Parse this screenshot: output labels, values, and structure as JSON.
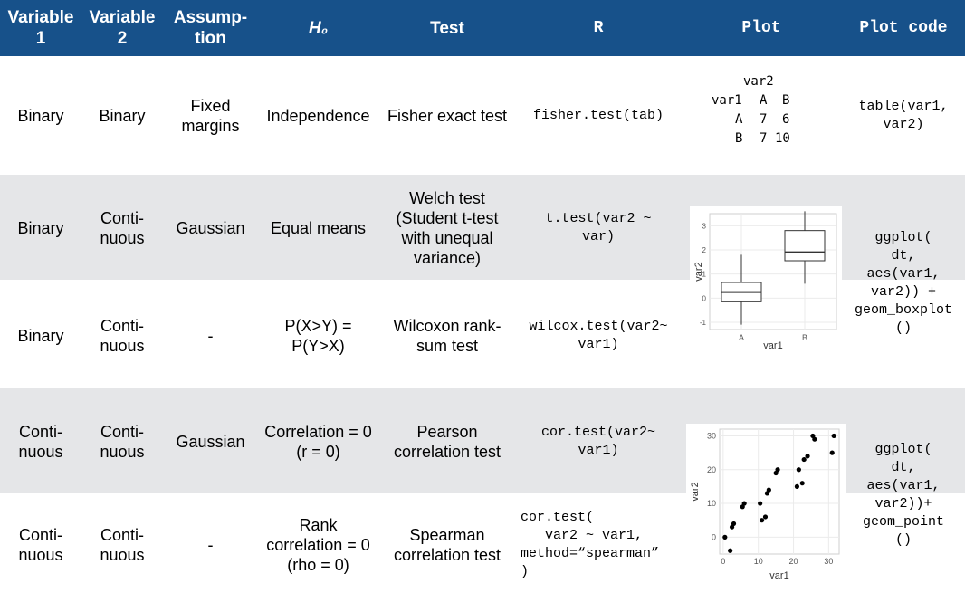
{
  "headers": {
    "var1": "Variable 1",
    "var2": "Variable 2",
    "assumption": "Assump-\ntion",
    "h0": "H₀",
    "test": "Test",
    "r": "R",
    "plot": "Plot",
    "plot_code": "Plot code"
  },
  "rows": [
    {
      "var1": "Binary",
      "var2": "Binary",
      "assumption": "Fixed\nmargins",
      "h0": "Independence",
      "test": "Fisher exact test",
      "r": "fisher.test(tab)"
    },
    {
      "var1": "Binary",
      "var2": "Conti-\nnuous",
      "assumption": "Gaussian",
      "h0": "Equal means",
      "test": "Welch test\n(Student t-test\nwith unequal\nvariance)",
      "r": "t.test(var2 ~\nvar)"
    },
    {
      "var1": "Binary",
      "var2": "Conti-\nnuous",
      "assumption": "-",
      "h0": "P(X>Y) =\nP(Y>X)",
      "test": "Wilcoxon rank-\nsum test",
      "r": "wilcox.test(var2~\nvar1)"
    },
    {
      "var1": "Conti-\nnuous",
      "var2": "Conti-\nnuous",
      "assumption": "Gaussian",
      "h0": "Correlation = 0\n(r = 0)",
      "test": "Pearson\ncorrelation test",
      "r": "cor.test(var2~\nvar1)"
    },
    {
      "var1": "Conti-\nnuous",
      "var2": "Conti-\nnuous",
      "assumption": "-",
      "h0": "Rank\ncorrelation = 0\n(rho = 0)",
      "test": "Spearman\ncorrelation test",
      "r": "cor.test(\n   var2 ~ var1,\nmethod=“spearman”\n)"
    }
  ],
  "plot_code": {
    "table": "table(var1,\nvar2)",
    "boxplot": "ggplot(\ndt,\naes(var1,\nvar2)) +\ngeom_boxplot\n()",
    "point": "ggplot(\ndt,\naes(var1,\nvar2))+\ngeom_point\n()"
  },
  "contingency": {
    "col_var": "var2",
    "row_var": "var1",
    "col_labels": [
      "A",
      "B"
    ],
    "row_labels": [
      "A",
      "B"
    ],
    "counts": [
      [
        "7",
        "6"
      ],
      [
        "7",
        "10"
      ]
    ]
  },
  "chart_data": [
    {
      "type": "box",
      "xlabel": "var1",
      "ylabel": "var2",
      "categories": [
        "A",
        "B"
      ],
      "yticks": [
        -1,
        0,
        1,
        2,
        3
      ],
      "ylim": [
        -1.3,
        3.5
      ],
      "grid": true,
      "boxes": [
        {
          "category": "A",
          "min": -1.1,
          "q1": -0.15,
          "median": 0.25,
          "q3": 0.65,
          "max": 1.8
        },
        {
          "category": "B",
          "min": 0.6,
          "q1": 1.55,
          "median": 1.9,
          "q3": 2.8,
          "max": 3.6
        }
      ]
    },
    {
      "type": "scatter",
      "xlabel": "var1",
      "ylabel": "var2",
      "xticks": [
        0,
        10,
        20,
        30
      ],
      "yticks": [
        0,
        10,
        20,
        30
      ],
      "xlim": [
        -1,
        33
      ],
      "ylim": [
        -5,
        32
      ],
      "grid": true,
      "points": [
        [
          0.5,
          0
        ],
        [
          2,
          -4
        ],
        [
          2.5,
          3
        ],
        [
          3,
          4
        ],
        [
          5.5,
          9
        ],
        [
          6,
          10
        ],
        [
          10.5,
          10
        ],
        [
          11,
          5
        ],
        [
          12,
          6
        ],
        [
          12.5,
          13
        ],
        [
          13,
          14
        ],
        [
          15,
          19
        ],
        [
          15.5,
          20
        ],
        [
          21,
          15
        ],
        [
          21.5,
          20
        ],
        [
          22.5,
          16
        ],
        [
          23,
          23
        ],
        [
          24,
          24
        ],
        [
          25.5,
          30
        ],
        [
          26,
          29
        ],
        [
          31,
          25
        ],
        [
          31.5,
          30
        ]
      ]
    }
  ]
}
